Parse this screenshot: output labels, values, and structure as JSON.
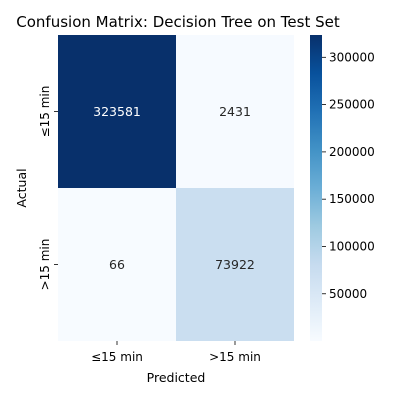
{
  "chart_data": {
    "type": "heatmap",
    "title": "Confusion Matrix: Decision Tree on Test Set",
    "xlabel": "Predicted",
    "ylabel": "Actual",
    "x_categories": [
      "≤15 min",
      ">15 min"
    ],
    "y_categories": [
      "≤15 min",
      ">15 min"
    ],
    "values": [
      [
        323581,
        2431
      ],
      [
        66,
        73922
      ]
    ],
    "colormap": "Blues",
    "colorbar": {
      "min": 66,
      "max": 323581,
      "ticks": [
        50000,
        100000,
        150000,
        200000,
        250000,
        300000
      ],
      "tick_labels": [
        "50000",
        "100000",
        "150000",
        "200000",
        "250000",
        "300000"
      ]
    },
    "grid": false,
    "legend": "colorbar-right"
  }
}
